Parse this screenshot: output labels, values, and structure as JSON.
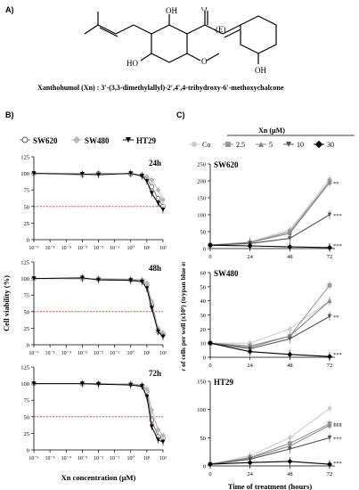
{
  "panelA": {
    "letter": "A)",
    "structure_labels": {
      "oh1": "OH",
      "o": "O",
      "e": "(E)",
      "oh2": "OH",
      "ome": "O",
      "oh3": "OH",
      "ho": "HO"
    },
    "caption": "Xanthohumol (Xn) : 3′-(3,3-dimethylallyl)-2′,4′,4-trihydroxy-6′-methoxychalcone"
  },
  "panelB": {
    "letter": "B)"
  },
  "panelC": {
    "letter": "C)"
  },
  "colors": {
    "SW620": "#777777",
    "SW480": "#b8b8b8",
    "HT29": "#000000",
    "Co": "#cccccc",
    "x2_5": "#999999",
    "x5": "#888888",
    "x10": "#555555",
    "x30": "#000000",
    "ref": "#d32f2f"
  },
  "chart_data": [
    {
      "type": "line",
      "panel": "B-24h",
      "title": "24h",
      "xscale": "log",
      "xlim": [
        1e-06,
        100
      ],
      "ylim": [
        0,
        125
      ],
      "x_ticks": [
        "10⁻⁶",
        "10⁻⁵",
        "10⁻⁴",
        "10⁻³",
        "10⁻²",
        "10⁻¹",
        "10⁰",
        "10¹",
        "10²"
      ],
      "y_ticks": [
        "0",
        "25",
        "50",
        "75",
        "100",
        "125"
      ],
      "reference_line": 50,
      "legend": [
        "SW620",
        "SW480",
        "HT29"
      ],
      "x": [
        1e-06,
        0.001,
        0.01,
        1,
        5,
        10,
        20,
        50,
        100
      ],
      "series": [
        {
          "name": "SW620",
          "values": [
            100,
            98,
            100,
            99,
            97,
            92,
            80,
            62,
            50
          ]
        },
        {
          "name": "SW480",
          "values": [
            100,
            97,
            99,
            99,
            98,
            95,
            90,
            75,
            60
          ]
        },
        {
          "name": "HT29",
          "values": [
            100,
            99,
            98,
            100,
            96,
            88,
            70,
            55,
            45
          ]
        }
      ]
    },
    {
      "type": "line",
      "panel": "B-48h",
      "title": "48h",
      "xscale": "log",
      "xlim": [
        1e-06,
        100
      ],
      "ylim": [
        0,
        125
      ],
      "x_ticks": [
        "10⁻⁶",
        "10⁻⁵",
        "10⁻⁴",
        "10⁻³",
        "10⁻²",
        "10⁻¹",
        "10⁰",
        "10¹",
        "10²"
      ],
      "y_ticks": [
        "0",
        "25",
        "50",
        "75",
        "100",
        "125"
      ],
      "reference_line": 50,
      "ylabel": "Cell viability (%)",
      "x": [
        1e-06,
        0.001,
        0.01,
        1,
        5,
        10,
        20,
        50,
        100
      ],
      "series": [
        {
          "name": "SW620",
          "values": [
            100,
            100,
            99,
            98,
            97,
            90,
            60,
            20,
            15
          ]
        },
        {
          "name": "SW480",
          "values": [
            100,
            99,
            100,
            99,
            98,
            93,
            65,
            25,
            18
          ]
        },
        {
          "name": "HT29",
          "values": [
            100,
            101,
            98,
            97,
            95,
            85,
            55,
            20,
            12
          ]
        }
      ]
    },
    {
      "type": "line",
      "panel": "B-72h",
      "title": "72h",
      "xscale": "log",
      "xlim": [
        1e-06,
        100
      ],
      "ylim": [
        0,
        125
      ],
      "x_ticks": [
        "10⁻⁶",
        "10⁻⁵",
        "10⁻⁴",
        "10⁻³",
        "10⁻²",
        "10⁻¹",
        "10⁰",
        "10¹",
        "10²"
      ],
      "y_ticks": [
        "0",
        "25",
        "50",
        "75",
        "100",
        "125"
      ],
      "reference_line": 50,
      "xlabel": "Xn concentration (µM)",
      "x": [
        1e-06,
        0.001,
        0.01,
        1,
        5,
        10,
        20,
        50,
        100
      ],
      "series": [
        {
          "name": "SW620",
          "values": [
            100,
            100,
            100,
            99,
            97,
            88,
            45,
            20,
            18
          ]
        },
        {
          "name": "SW480",
          "values": [
            100,
            100,
            99,
            100,
            98,
            92,
            60,
            30,
            22
          ]
        },
        {
          "name": "HT29",
          "values": [
            100,
            100,
            99,
            98,
            96,
            80,
            35,
            15,
            12
          ]
        }
      ]
    },
    {
      "type": "line",
      "panel": "C-SW620",
      "title": "SW620",
      "x": [
        0,
        24,
        48,
        72
      ],
      "x_ticks": [
        "0",
        "24",
        "48",
        "72"
      ],
      "ylim": [
        0,
        250
      ],
      "y_ticks": [
        "0",
        "50",
        "100",
        "150",
        "200",
        "250"
      ],
      "legend_title": "Xn (µM)",
      "legend": [
        "Co",
        "2.5",
        "5",
        "10",
        "30"
      ],
      "significance": [
        "**",
        "***",
        "***"
      ],
      "series": [
        {
          "name": "Co",
          "values": [
            10,
            20,
            55,
            205
          ]
        },
        {
          "name": "2.5",
          "values": [
            10,
            18,
            50,
            198
          ]
        },
        {
          "name": "5",
          "values": [
            10,
            18,
            45,
            195
          ]
        },
        {
          "name": "10",
          "values": [
            10,
            15,
            30,
            100
          ]
        },
        {
          "name": "30",
          "values": [
            10,
            8,
            5,
            3
          ]
        }
      ]
    },
    {
      "type": "line",
      "panel": "C-SW480",
      "title": "SW480",
      "x": [
        0,
        24,
        48,
        72
      ],
      "x_ticks": [
        "0",
        "24",
        "48",
        "72"
      ],
      "ylim": [
        0,
        60
      ],
      "y_ticks": [
        "0",
        "10",
        "20",
        "30",
        "40",
        "50",
        "60"
      ],
      "ylabel": "Number of cells per well (x10⁵) (trypan blue exclusion)",
      "significance": [
        "**",
        "***"
      ],
      "series": [
        {
          "name": "Co",
          "values": [
            10,
            10,
            20,
            40
          ]
        },
        {
          "name": "2.5",
          "values": [
            10,
            8,
            15,
            51
          ]
        },
        {
          "name": "5",
          "values": [
            10,
            7,
            15,
            40
          ]
        },
        {
          "name": "10",
          "values": [
            10,
            6,
            13,
            29
          ]
        },
        {
          "name": "30",
          "values": [
            10,
            4,
            2,
            0.5
          ]
        }
      ]
    },
    {
      "type": "line",
      "panel": "C-HT29",
      "title": "HT29",
      "x": [
        0,
        24,
        48,
        72
      ],
      "x_ticks": [
        "0",
        "24",
        "48",
        "72"
      ],
      "ylim": [
        0,
        150
      ],
      "y_ticks": [
        "0",
        "50",
        "100",
        "150"
      ],
      "xlabel": "Time of treatment (hours)",
      "significance": [
        "***",
        "***",
        "***",
        "***"
      ],
      "series": [
        {
          "name": "Co",
          "values": [
            3,
            18,
            50,
            102
          ]
        },
        {
          "name": "2.5",
          "values": [
            3,
            15,
            40,
            75
          ]
        },
        {
          "name": "5",
          "values": [
            3,
            14,
            35,
            72
          ]
        },
        {
          "name": "10",
          "values": [
            3,
            12,
            30,
            50
          ]
        },
        {
          "name": "30",
          "values": [
            3,
            6,
            8,
            3
          ]
        }
      ]
    }
  ]
}
